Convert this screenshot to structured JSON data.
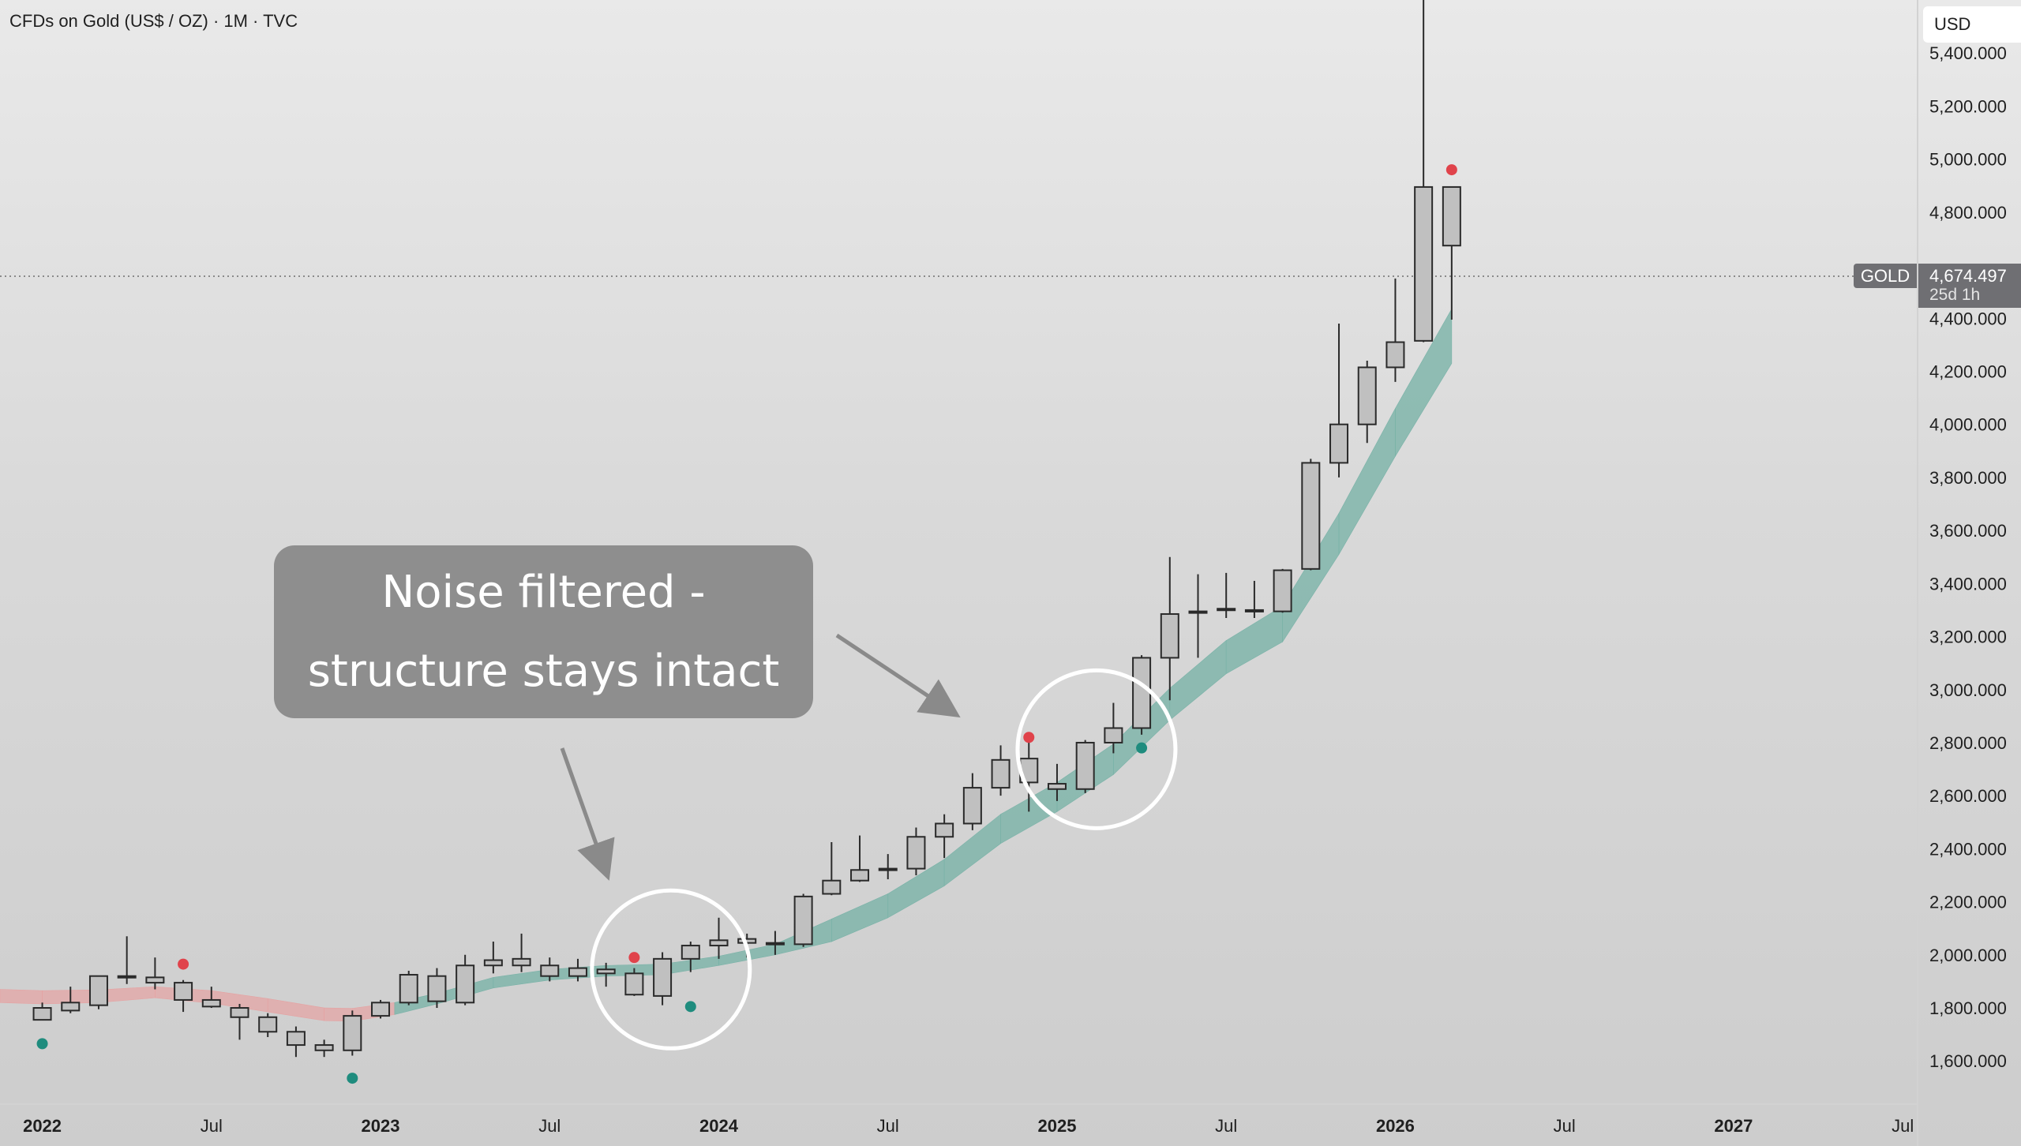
{
  "header": {
    "title": "CFDs on Gold (US$ / OZ) · 1M · TVC",
    "currency": "USD"
  },
  "last_price": {
    "symbol": "GOLD",
    "value": "4,674.497",
    "countdown": "25d 1h"
  },
  "annotation": {
    "text": "Noise filtered - structure stays intact"
  },
  "colors": {
    "candle_body": "#c0c0c0",
    "candle_border": "#2a2a2a",
    "band_up": "#78b2a7",
    "band_down": "#e6a2a2",
    "dot_red": "#e0434b",
    "dot_green": "#1f8c7e"
  },
  "chart_data": {
    "type": "candlestick",
    "title": "CFDs on Gold (US$ / OZ) · 1M · TVC",
    "x_tick_labels": [
      "2022",
      "Jul",
      "2023",
      "Jul",
      "2024",
      "Jul",
      "2025",
      "Jul",
      "2026",
      "Jul",
      "2027",
      "Jul"
    ],
    "y_tick_labels": [
      "1,600.000",
      "1,800.000",
      "2,000.000",
      "2,200.000",
      "2,400.000",
      "2,600.000",
      "2,800.000",
      "3,000.000",
      "3,200.000",
      "3,400.000",
      "3,600.000",
      "3,800.000",
      "4,000.000",
      "4,200.000",
      "4,400.000",
      "4,800.000",
      "5,000.000",
      "5,200.000",
      "5,400.000"
    ],
    "ylim": [
      1440,
      5600
    ],
    "x_range_months": [
      -1.5,
      66.5
    ],
    "grid": false,
    "candles": [
      {
        "m": 0,
        "o": 1800,
        "h": 1820,
        "l": 1760,
        "c": 1755
      },
      {
        "m": 1,
        "o": 1790,
        "h": 1880,
        "l": 1780,
        "c": 1820
      },
      {
        "m": 2,
        "o": 1810,
        "h": 1920,
        "l": 1795,
        "c": 1920
      },
      {
        "m": 3,
        "o": 1920,
        "h": 2070,
        "l": 1890,
        "c": 1915
      },
      {
        "m": 4,
        "o": 1915,
        "h": 1990,
        "l": 1870,
        "c": 1895
      },
      {
        "m": 5,
        "o": 1895,
        "h": 1905,
        "l": 1785,
        "c": 1830
      },
      {
        "m": 6,
        "o": 1830,
        "h": 1880,
        "l": 1800,
        "c": 1805
      },
      {
        "m": 7,
        "o": 1800,
        "h": 1815,
        "l": 1680,
        "c": 1765
      },
      {
        "m": 8,
        "o": 1765,
        "h": 1780,
        "l": 1690,
        "c": 1710
      },
      {
        "m": 9,
        "o": 1710,
        "h": 1730,
        "l": 1615,
        "c": 1660
      },
      {
        "m": 10,
        "o": 1660,
        "h": 1680,
        "l": 1615,
        "c": 1640
      },
      {
        "m": 11,
        "o": 1640,
        "h": 1790,
        "l": 1620,
        "c": 1770
      },
      {
        "m": 12,
        "o": 1770,
        "h": 1830,
        "l": 1760,
        "c": 1820
      },
      {
        "m": 13,
        "o": 1820,
        "h": 1940,
        "l": 1810,
        "c": 1925
      },
      {
        "m": 14,
        "o": 1825,
        "h": 1950,
        "l": 1800,
        "c": 1920
      },
      {
        "m": 15,
        "o": 1820,
        "h": 2000,
        "l": 1810,
        "c": 1960
      },
      {
        "m": 16,
        "o": 1960,
        "h": 2050,
        "l": 1930,
        "c": 1980
      },
      {
        "m": 17,
        "o": 1985,
        "h": 2080,
        "l": 1935,
        "c": 1960
      },
      {
        "m": 18,
        "o": 1960,
        "h": 1990,
        "l": 1900,
        "c": 1920
      },
      {
        "m": 19,
        "o": 1920,
        "h": 1985,
        "l": 1900,
        "c": 1950
      },
      {
        "m": 20,
        "o": 1945,
        "h": 1970,
        "l": 1880,
        "c": 1930
      },
      {
        "m": 21,
        "o": 1930,
        "h": 1950,
        "l": 1845,
        "c": 1850
      },
      {
        "m": 22,
        "o": 1845,
        "h": 2010,
        "l": 1810,
        "c": 1985
      },
      {
        "m": 23,
        "o": 1985,
        "h": 2050,
        "l": 1935,
        "c": 2035
      },
      {
        "m": 24,
        "o": 2035,
        "h": 2140,
        "l": 1985,
        "c": 2055
      },
      {
        "m": 25,
        "o": 2060,
        "h": 2080,
        "l": 1990,
        "c": 2045
      },
      {
        "m": 26,
        "o": 2045,
        "h": 2090,
        "l": 2000,
        "c": 2045
      },
      {
        "m": 27,
        "o": 2040,
        "h": 2230,
        "l": 2030,
        "c": 2220
      },
      {
        "m": 28,
        "o": 2230,
        "h": 2425,
        "l": 2225,
        "c": 2280
      },
      {
        "m": 29,
        "o": 2280,
        "h": 2450,
        "l": 2275,
        "c": 2320
      },
      {
        "m": 30,
        "o": 2320,
        "h": 2380,
        "l": 2285,
        "c": 2325
      },
      {
        "m": 31,
        "o": 2325,
        "h": 2480,
        "l": 2300,
        "c": 2445
      },
      {
        "m": 32,
        "o": 2445,
        "h": 2530,
        "l": 2365,
        "c": 2495
      },
      {
        "m": 33,
        "o": 2495,
        "h": 2685,
        "l": 2470,
        "c": 2630
      },
      {
        "m": 34,
        "o": 2630,
        "h": 2790,
        "l": 2600,
        "c": 2735
      },
      {
        "m": 35,
        "o": 2740,
        "h": 2800,
        "l": 2540,
        "c": 2650
      },
      {
        "m": 36,
        "o": 2645,
        "h": 2720,
        "l": 2580,
        "c": 2625
      },
      {
        "m": 37,
        "o": 2625,
        "h": 2810,
        "l": 2610,
        "c": 2800
      },
      {
        "m": 38,
        "o": 2800,
        "h": 2950,
        "l": 2760,
        "c": 2855
      },
      {
        "m": 39,
        "o": 2855,
        "h": 3130,
        "l": 2830,
        "c": 3120
      },
      {
        "m": 40,
        "o": 3120,
        "h": 3500,
        "l": 2960,
        "c": 3285
      },
      {
        "m": 41,
        "o": 3290,
        "h": 3435,
        "l": 3120,
        "c": 3295
      },
      {
        "m": 42,
        "o": 3300,
        "h": 3440,
        "l": 3270,
        "c": 3305
      },
      {
        "m": 43,
        "o": 3300,
        "h": 3410,
        "l": 3270,
        "c": 3300
      },
      {
        "m": 44,
        "o": 3295,
        "h": 3455,
        "l": 3290,
        "c": 3450
      },
      {
        "m": 45,
        "o": 3455,
        "h": 3870,
        "l": 3450,
        "c": 3855
      },
      {
        "m": 46,
        "o": 3855,
        "h": 4380,
        "l": 3800,
        "c": 4000
      },
      {
        "m": 47,
        "o": 4000,
        "h": 4240,
        "l": 3930,
        "c": 4215
      },
      {
        "m": 48,
        "o": 4215,
        "h": 4550,
        "l": 4160,
        "c": 4310
      },
      {
        "m": 49,
        "o": 4315,
        "h": 5600,
        "l": 4310,
        "c": 4895
      },
      {
        "m": 50,
        "o": 4895,
        "h": 4895,
        "l": 4395,
        "c": 4674
      }
    ],
    "band": [
      {
        "m": -1.5,
        "a": 1870,
        "b": 1820,
        "dir": "down"
      },
      {
        "m": 0,
        "a": 1865,
        "b": 1815,
        "dir": "down"
      },
      {
        "m": 2,
        "a": 1868,
        "b": 1820,
        "dir": "down"
      },
      {
        "m": 4,
        "a": 1880,
        "b": 1838,
        "dir": "down"
      },
      {
        "m": 6,
        "a": 1865,
        "b": 1818,
        "dir": "down"
      },
      {
        "m": 8,
        "a": 1835,
        "b": 1785,
        "dir": "down"
      },
      {
        "m": 10,
        "a": 1800,
        "b": 1752,
        "dir": "down"
      },
      {
        "m": 11,
        "a": 1798,
        "b": 1750,
        "dir": "down"
      },
      {
        "m": 12.5,
        "a": 1820,
        "b": 1775,
        "dir": "down"
      },
      {
        "m": 14,
        "a": 1855,
        "b": 1815,
        "dir": "up"
      },
      {
        "m": 16,
        "a": 1915,
        "b": 1875,
        "dir": "up"
      },
      {
        "m": 18,
        "a": 1945,
        "b": 1905,
        "dir": "up"
      },
      {
        "m": 20,
        "a": 1960,
        "b": 1920,
        "dir": "up"
      },
      {
        "m": 22,
        "a": 1965,
        "b": 1925,
        "dir": "up"
      },
      {
        "m": 24,
        "a": 1995,
        "b": 1960,
        "dir": "up"
      },
      {
        "m": 26,
        "a": 2040,
        "b": 2000,
        "dir": "up"
      },
      {
        "m": 28,
        "a": 2135,
        "b": 2050,
        "dir": "up"
      },
      {
        "m": 30,
        "a": 2230,
        "b": 2140,
        "dir": "up"
      },
      {
        "m": 32,
        "a": 2360,
        "b": 2260,
        "dir": "up"
      },
      {
        "m": 34,
        "a": 2530,
        "b": 2420,
        "dir": "up"
      },
      {
        "m": 36,
        "a": 2650,
        "b": 2540,
        "dir": "up"
      },
      {
        "m": 38,
        "a": 2795,
        "b": 2680,
        "dir": "up"
      },
      {
        "m": 40,
        "a": 3005,
        "b": 2885,
        "dir": "up"
      },
      {
        "m": 42,
        "a": 3185,
        "b": 3060,
        "dir": "up"
      },
      {
        "m": 44,
        "a": 3315,
        "b": 3180,
        "dir": "up"
      },
      {
        "m": 46,
        "a": 3665,
        "b": 3510,
        "dir": "up"
      },
      {
        "m": 48,
        "a": 4060,
        "b": 3880,
        "dir": "up"
      },
      {
        "m": 50,
        "a": 4435,
        "b": 4230,
        "dir": "up"
      }
    ],
    "signal_dots": [
      {
        "m": 0,
        "price": 1665,
        "type": "green"
      },
      {
        "m": 5,
        "price": 1965,
        "type": "red"
      },
      {
        "m": 11,
        "price": 1535,
        "type": "green"
      },
      {
        "m": 21,
        "price": 1990,
        "type": "red"
      },
      {
        "m": 23,
        "price": 1805,
        "type": "green"
      },
      {
        "m": 35,
        "price": 2820,
        "type": "red"
      },
      {
        "m": 39,
        "price": 2780,
        "type": "green"
      },
      {
        "m": 50,
        "price": 4960,
        "type": "red"
      }
    ],
    "highlight_circles": [
      {
        "m": 22.3,
        "price": 1945
      },
      {
        "m": 37.4,
        "price": 2775
      }
    ]
  }
}
